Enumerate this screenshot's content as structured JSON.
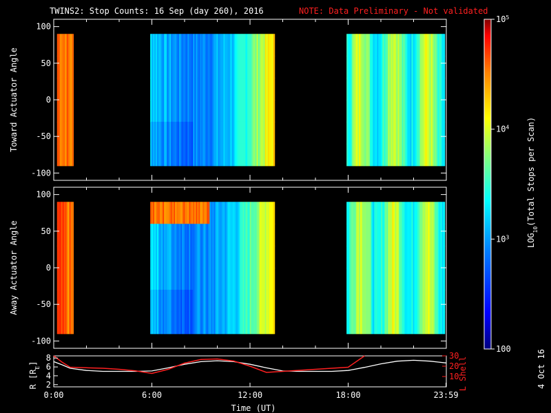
{
  "title": {
    "main": "TWINS2: Stop Counts: 16 Sep (day 260), 2016",
    "note": "NOTE: Data Preliminary - Not validated"
  },
  "date_stamp": "4 Oct 16",
  "colors": {
    "background": "#000000",
    "axis": "#ffffff",
    "note": "#ff2020",
    "r_line": "#ffffff",
    "lshell_line": "#ff2020"
  },
  "chart_data": [
    {
      "type": "heatmap",
      "name": "toward",
      "ylabel": "Toward Actuator Angle",
      "ylim": [
        -110,
        110
      ],
      "yticks": [
        100,
        50,
        0,
        -50,
        -100
      ],
      "angle_range": [
        -90,
        90
      ],
      "x_range_hours": [
        0,
        24
      ],
      "data_intervals_hours": [
        [
          0.2,
          1.2
        ],
        [
          5.9,
          13.5
        ],
        [
          17.9,
          23.9
        ]
      ]
    },
    {
      "type": "heatmap",
      "name": "away",
      "ylabel": "Away Actuator Angle",
      "ylim": [
        -110,
        110
      ],
      "yticks": [
        100,
        50,
        0,
        -50,
        -100
      ],
      "angle_range": [
        -90,
        90
      ],
      "x_range_hours": [
        0,
        24
      ],
      "data_intervals_hours": [
        [
          0.2,
          1.2
        ],
        [
          5.9,
          13.5
        ],
        [
          17.9,
          23.9
        ]
      ]
    },
    {
      "type": "line",
      "name": "orbit",
      "ylabel_left": "R [R",
      "ylabel_left_sub": "E",
      "ylabel_left_end": "]",
      "ylabel_right": "L Shell",
      "yticks_left": [
        8,
        6,
        4,
        2
      ],
      "ylim_left": [
        1.5,
        8.5
      ],
      "yticks_right": [
        30,
        20,
        10
      ],
      "ylim_right": [
        0,
        30
      ],
      "xlabel": "Time (UT)",
      "xticks": [
        "0:00",
        "6:00",
        "12:00",
        "18:00",
        "23:59"
      ],
      "xtick_hours": [
        0,
        6,
        12,
        18,
        23.98
      ],
      "r": {
        "x": [
          0,
          0.5,
          1,
          2,
          3,
          4,
          5,
          6,
          7,
          8,
          9,
          10,
          11,
          12,
          13,
          14,
          15,
          16,
          17,
          18,
          19,
          20,
          21,
          22,
          23,
          24
        ],
        "y": [
          7.2,
          6.5,
          5.7,
          5.2,
          5.0,
          5.0,
          5.0,
          5.1,
          5.8,
          6.6,
          7.2,
          7.4,
          7.2,
          6.6,
          5.8,
          5.1,
          5.0,
          5.0,
          5.0,
          5.2,
          5.9,
          6.7,
          7.3,
          7.5,
          7.3,
          6.9
        ]
      },
      "lshell": {
        "x": [
          0,
          0.5,
          1,
          2,
          3,
          4,
          5,
          6,
          7,
          8,
          9,
          10,
          11,
          12,
          13,
          14,
          15,
          16,
          17,
          18,
          19
        ],
        "y": [
          30,
          24,
          19,
          18.5,
          18,
          17,
          15.5,
          13,
          17,
          23,
          26.5,
          27,
          25,
          20,
          14,
          15,
          16,
          17,
          18,
          19,
          30
        ]
      }
    }
  ],
  "colorbar": {
    "label": "LOG",
    "label_sub": "10",
    "label_end": "(Total Stops per Scan)",
    "ticks": [
      {
        "label": "10",
        "sup": "5",
        "value": 100000
      },
      {
        "label": "10",
        "sup": "4",
        "value": 10000
      },
      {
        "label": "10",
        "sup": "3",
        "value": 1000
      },
      {
        "label": "100",
        "sup": "",
        "value": 100
      }
    ],
    "range": [
      100,
      100000
    ],
    "colors": [
      "#00007f",
      "#0000ff",
      "#0080ff",
      "#00ffff",
      "#80ff80",
      "#ffff00",
      "#ff8000",
      "#ff0000",
      "#7f0000"
    ]
  }
}
